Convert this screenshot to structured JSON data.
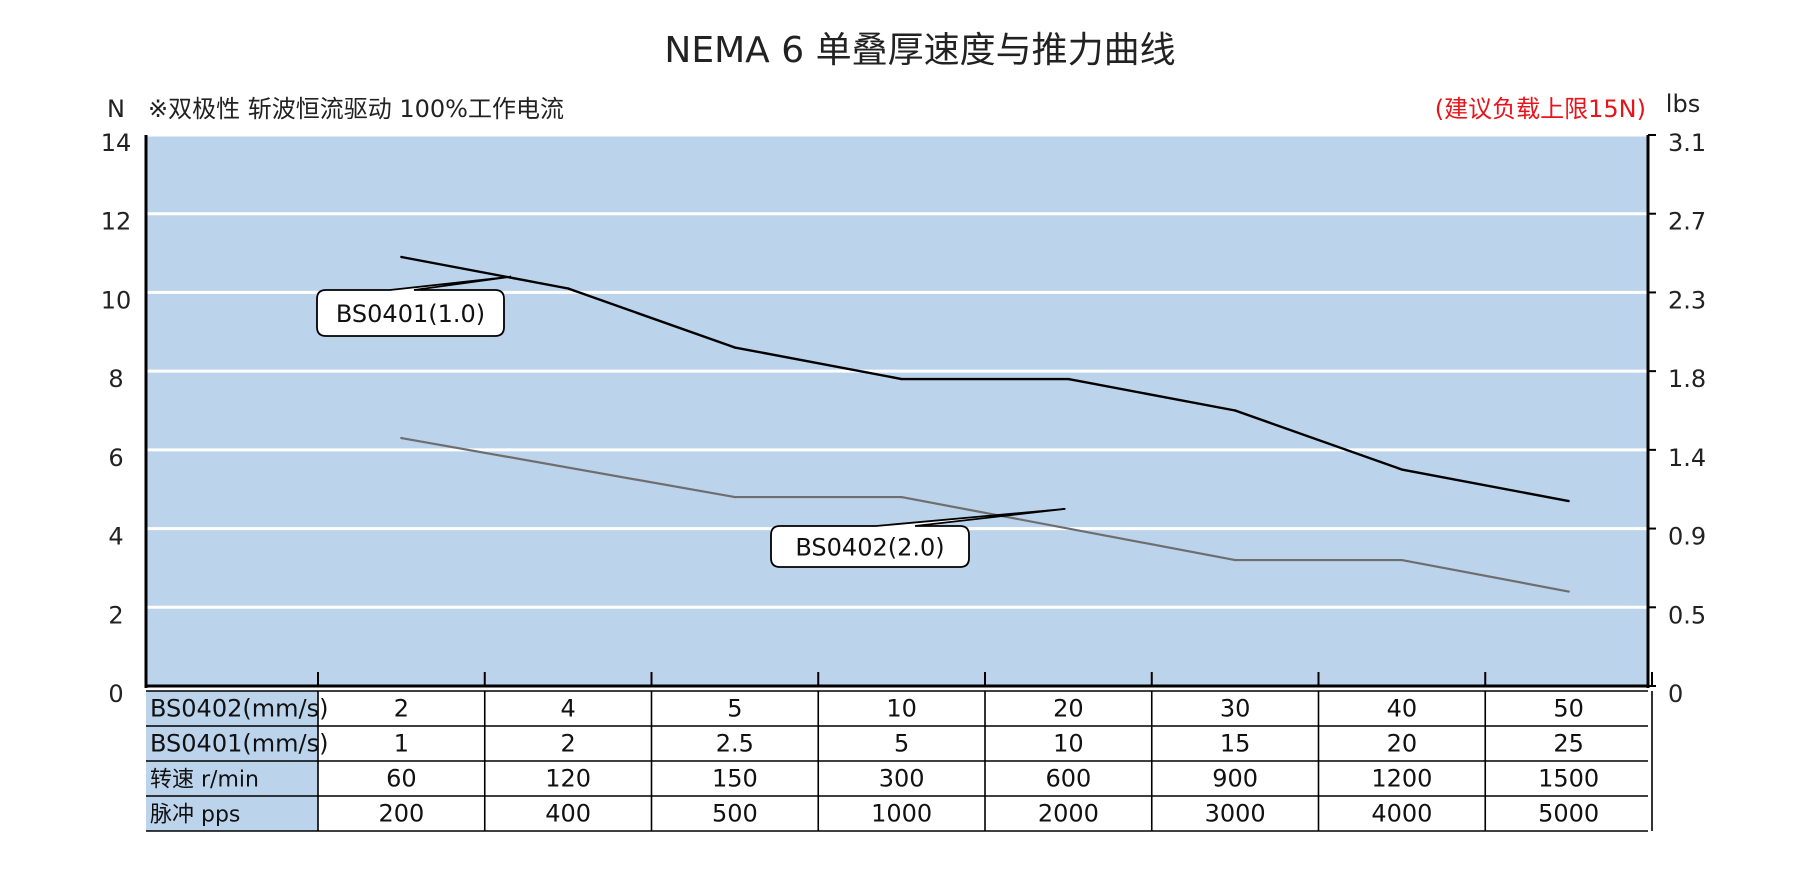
{
  "chart_data": {
    "type": "line",
    "title": "NEMA 6 单叠厚速度与推力曲线",
    "subtitle": "※双极性 斩波恒流驱动 100%工作电流",
    "note": "(建议负载上限15N)",
    "ylabel_left": "N",
    "ylabel_right": "lbs",
    "ylim": [
      0,
      14
    ],
    "yticks_left": [
      "0",
      "2",
      "4",
      "6",
      "8",
      "10",
      "12",
      "14"
    ],
    "yticks_right": [
      "0",
      "0.5",
      "0.9",
      "1.4",
      "1.8",
      "2.3",
      "2.7",
      "3.1"
    ],
    "grid": true,
    "x_positions": [
      1,
      2,
      3,
      4,
      5,
      6,
      7,
      8
    ],
    "series": [
      {
        "name": "BS0401(1.0)",
        "values": [
          10.9,
          10.1,
          8.6,
          7.8,
          7.8,
          7.0,
          5.5,
          4.7
        ],
        "color": "#000000",
        "label_anchor_index": 1,
        "label_anchor_value": 10.4
      },
      {
        "name": "BS0402(2.0)",
        "values": [
          6.3,
          null,
          4.8,
          4.8,
          null,
          3.2,
          3.2,
          2.4
        ],
        "color": "#6e6e6e",
        "label_anchor_index": 4,
        "label_anchor_value": 4.5
      }
    ],
    "table": {
      "rows": [
        {
          "label": "BS0402(mm/s)",
          "values": [
            "2",
            "4",
            "5",
            "10",
            "20",
            "30",
            "40",
            "50"
          ]
        },
        {
          "label": "BS0401(mm/s)",
          "values": [
            "1",
            "2",
            "2.5",
            "5",
            "10",
            "15",
            "20",
            "25"
          ]
        },
        {
          "label": "转速 r/min",
          "values": [
            "60",
            "120",
            "150",
            "300",
            "600",
            "900",
            "1200",
            "1500"
          ]
        },
        {
          "label": "脉冲 pps",
          "values": [
            "200",
            "400",
            "500",
            "1000",
            "2000",
            "3000",
            "4000",
            "5000"
          ]
        }
      ]
    },
    "colors": {
      "plot_bg": "#bcd3ec",
      "grid": "#ffffff",
      "note": "#e8141b",
      "axis": "#000000"
    }
  }
}
